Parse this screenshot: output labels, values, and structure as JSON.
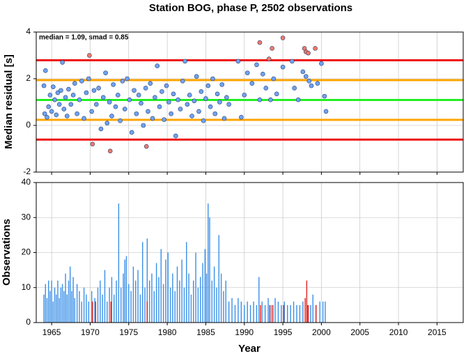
{
  "chart_data": [
    {
      "type": "scatter",
      "title": "Station BOG, phase P, 2502 observations",
      "annotation": "median = 1.09, smad = 0.85",
      "ylabel": "Median residual [s]",
      "xlim": [
        1963,
        2018.4
      ],
      "ylim": [
        -2,
        4
      ],
      "xticks": [
        1965,
        1970,
        1975,
        1980,
        1985,
        1990,
        1995,
        2000,
        2005,
        2010,
        2015
      ],
      "yticks": [
        -2,
        0,
        2,
        4
      ],
      "grid": true,
      "reference_lines": [
        {
          "value": 1.09,
          "color": "#22ee22"
        },
        {
          "value": 1.94,
          "color": "#ffa500"
        },
        {
          "value": 0.24,
          "color": "#ffa500"
        },
        {
          "value": 2.79,
          "color": "#ee1111"
        },
        {
          "value": -0.61,
          "color": "#ee1111"
        }
      ],
      "series": [
        {
          "color": "#6fa3f2",
          "x": [
            1964.0,
            1964.1,
            1964.2,
            1964.4,
            1964.6,
            1964.8,
            1965.0,
            1965.2,
            1965.4,
            1965.6,
            1965.8,
            1966.0,
            1966.2,
            1966.4,
            1966.6,
            1966.8,
            1967.0,
            1967.2,
            1967.5,
            1967.8,
            1968.0,
            1968.3,
            1968.6,
            1968.9,
            1969.2,
            1969.5,
            1969.8,
            1970.2,
            1970.5,
            1970.8,
            1971.1,
            1971.4,
            1971.7,
            1972.0,
            1972.2,
            1972.5,
            1972.8,
            1973.0,
            1973.3,
            1973.6,
            1973.9,
            1974.2,
            1974.5,
            1974.8,
            1975.1,
            1975.4,
            1975.7,
            1976.0,
            1976.3,
            1976.6,
            1976.9,
            1977.2,
            1977.5,
            1977.8,
            1978.1,
            1978.4,
            1978.7,
            1979.0,
            1979.3,
            1979.6,
            1979.9,
            1980.2,
            1980.5,
            1980.8,
            1981.1,
            1981.4,
            1981.7,
            1982.0,
            1982.3,
            1982.6,
            1982.9,
            1983.2,
            1983.5,
            1983.8,
            1984.1,
            1984.4,
            1984.7,
            1985.0,
            1985.3,
            1985.6,
            1985.9,
            1986.2,
            1986.5,
            1986.8,
            1987.1,
            1987.4,
            1987.7,
            1988.0,
            1989.2,
            1989.6,
            1990.0,
            1990.4,
            1991.0,
            1991.6,
            1992.0,
            1992.4,
            1992.8,
            1993.4,
            1993.8,
            1994.2,
            1995.0,
            1996.2,
            1996.5,
            1997.0,
            1997.6,
            1998.0,
            1998.4,
            1998.7,
            1999.5,
            2000.0,
            2000.4,
            2000.6
          ],
          "values": [
            1.7,
            0.5,
            2.35,
            0.35,
            0.8,
            1.3,
            0.6,
            1.65,
            1.1,
            0.45,
            1.4,
            0.9,
            1.5,
            2.7,
            0.7,
            1.2,
            0.4,
            1.55,
            0.9,
            1.3,
            1.8,
            0.5,
            1.1,
            1.9,
            0.3,
            1.4,
            2.0,
            0.6,
            1.5,
            0.9,
            1.6,
            -0.15,
            1.2,
            2.25,
            0.1,
            1.0,
            0.4,
            1.75,
            0.8,
            1.3,
            0.2,
            1.9,
            0.7,
            2.0,
            1.1,
            -0.3,
            1.5,
            0.5,
            1.3,
            0.95,
            0.0,
            1.6,
            0.6,
            1.8,
            0.3,
            1.2,
            2.55,
            0.8,
            1.45,
            0.25,
            1.7,
            1.0,
            0.5,
            1.35,
            -0.45,
            1.1,
            0.7,
            1.9,
            2.75,
            0.9,
            1.3,
            0.4,
            1.05,
            2.1,
            0.6,
            1.45,
            0.2,
            1.15,
            1.7,
            0.8,
            2.0,
            0.5,
            1.35,
            1.0,
            1.75,
            0.3,
            1.2,
            0.9,
            2.75,
            0.35,
            1.3,
            2.25,
            1.8,
            2.6,
            1.1,
            2.2,
            1.6,
            1.1,
            2.0,
            1.35,
            2.5,
            2.75,
            1.6,
            1.1,
            2.3,
            2.1,
            1.9,
            1.7,
            1.8,
            2.65,
            1.25,
            0.6
          ]
        },
        {
          "color": "#f07a68",
          "x": [
            1969.9,
            1970.3,
            1972.6,
            1977.3,
            1992.0,
            1993.2,
            1993.6,
            1995.0,
            1997.8,
            1998.0,
            1998.3,
            1999.2
          ],
          "values": [
            3.0,
            -0.8,
            -1.1,
            -0.9,
            3.55,
            2.85,
            3.3,
            3.75,
            3.3,
            3.15,
            3.1,
            3.3
          ]
        }
      ]
    },
    {
      "type": "bar",
      "ylabel": "Observations",
      "xlabel": "Year",
      "xlim": [
        1963,
        2018.4
      ],
      "ylim": [
        0,
        40
      ],
      "xticks": [
        1965,
        1970,
        1975,
        1980,
        1985,
        1990,
        1995,
        2000,
        2005,
        2010,
        2015
      ],
      "yticks": [
        0,
        10,
        20,
        30,
        40
      ],
      "grid": true,
      "series": [
        {
          "color": "#3a8fe6",
          "x": [
            1964.0,
            1964.2,
            1964.4,
            1964.6,
            1964.8,
            1965.0,
            1965.2,
            1965.4,
            1965.6,
            1965.8,
            1966.0,
            1966.2,
            1966.4,
            1966.6,
            1966.8,
            1967.0,
            1967.2,
            1967.4,
            1967.6,
            1967.8,
            1968.0,
            1968.3,
            1968.6,
            1968.9,
            1969.2,
            1969.5,
            1969.8,
            1970.2,
            1970.6,
            1971.0,
            1971.3,
            1971.6,
            1971.9,
            1972.2,
            1972.5,
            1972.8,
            1973.1,
            1973.4,
            1973.7,
            1974.0,
            1974.3,
            1974.5,
            1974.7,
            1975.0,
            1975.3,
            1975.6,
            1975.9,
            1976.2,
            1976.5,
            1976.8,
            1977.1,
            1977.4,
            1977.7,
            1978.0,
            1978.3,
            1978.6,
            1978.9,
            1979.2,
            1979.5,
            1979.8,
            1980.1,
            1980.4,
            1980.7,
            1981.0,
            1981.3,
            1981.6,
            1981.9,
            1982.2,
            1982.5,
            1982.8,
            1983.1,
            1983.4,
            1983.7,
            1984.0,
            1984.3,
            1984.6,
            1984.9,
            1985.1,
            1985.3,
            1985.5,
            1985.8,
            1986.1,
            1986.4,
            1986.7,
            1987.0,
            1987.3,
            1987.6,
            1988.0,
            1988.4,
            1988.8,
            1989.2,
            1989.6,
            1990.0,
            1990.4,
            1990.8,
            1991.2,
            1991.6,
            1991.9,
            1992.3,
            1992.7,
            1993.1,
            1993.5,
            1994.0,
            1994.4,
            1994.8,
            1995.2,
            1995.6,
            1996.0,
            1996.4,
            1996.8,
            1997.2,
            1997.6,
            1998.2,
            1998.6,
            1998.9,
            1999.3,
            1999.8,
            2000.2,
            2000.5
          ],
          "values": [
            8,
            11,
            7,
            12,
            9,
            12,
            6,
            10,
            8,
            12,
            7,
            10,
            11,
            9,
            14,
            8,
            12,
            16,
            9,
            13,
            7,
            11,
            9,
            6,
            10,
            8,
            6,
            9,
            7,
            10,
            12,
            8,
            15,
            6,
            10,
            13,
            8,
            12,
            34,
            10,
            14,
            18,
            19,
            11,
            9,
            16,
            12,
            15,
            8,
            23,
            10,
            24,
            12,
            14,
            9,
            17,
            13,
            21,
            11,
            18,
            20,
            10,
            14,
            9,
            16,
            12,
            18,
            10,
            23,
            14,
            8,
            12,
            20,
            10,
            13,
            17,
            21,
            14,
            34,
            30,
            12,
            16,
            10,
            25,
            14,
            9,
            12,
            6,
            7,
            5,
            7,
            6,
            5,
            6,
            5,
            6,
            5,
            13,
            6,
            5,
            7,
            5,
            7,
            6,
            5,
            6,
            5,
            5,
            6,
            5,
            5,
            6,
            5,
            5,
            8,
            5,
            6,
            6,
            6
          ]
        },
        {
          "color": "#e02020",
          "x": [
            1970.3,
            1970.7,
            1972.7,
            1977.4,
            1992.1,
            1993.3,
            1993.7,
            1995.1,
            1997.9,
            1998.1,
            1998.3,
            1999.3
          ],
          "values": [
            6,
            6,
            6,
            6,
            5,
            5,
            5,
            5,
            7,
            12,
            5,
            5
          ]
        }
      ]
    }
  ]
}
